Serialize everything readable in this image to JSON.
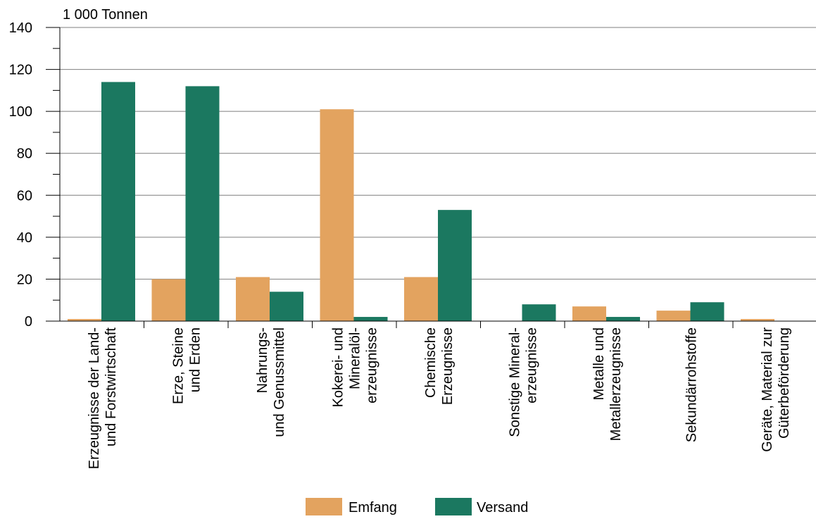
{
  "chart_data": {
    "type": "bar",
    "ylabel": "1 000 Tonnen",
    "ylim": [
      0,
      140
    ],
    "yticks": [
      "0",
      "20",
      "40",
      "60",
      "80",
      "100",
      "120",
      "140"
    ],
    "grid": true,
    "legend_position": "bottom",
    "categories": [
      [
        "Erzeugnisse der Land-",
        "und Forstwirtschaft"
      ],
      [
        "Erze, Steine",
        "und Erden"
      ],
      [
        "Nahrungs-",
        "und Genussmittel"
      ],
      [
        "Kokerei- und",
        "Mineralöl-",
        "erzeugnisse"
      ],
      [
        "Chemische",
        "Erzeugnisse"
      ],
      [
        "Sonstige Mineral-",
        "erzeugnisse"
      ],
      [
        "Metalle und",
        "Metallerzeugnisse"
      ],
      [
        "Sekundärrohstoffe"
      ],
      [
        "Geräte, Material zur",
        "Güterbeförderung"
      ]
    ],
    "series": [
      {
        "name": "Emfang",
        "color": "#e3a35f",
        "values": [
          1,
          20,
          21,
          101,
          21,
          0,
          7,
          5,
          1
        ]
      },
      {
        "name": "Versand",
        "color": "#1b7860",
        "values": [
          114,
          112,
          14,
          2,
          53,
          8,
          2,
          9,
          0
        ]
      }
    ]
  }
}
